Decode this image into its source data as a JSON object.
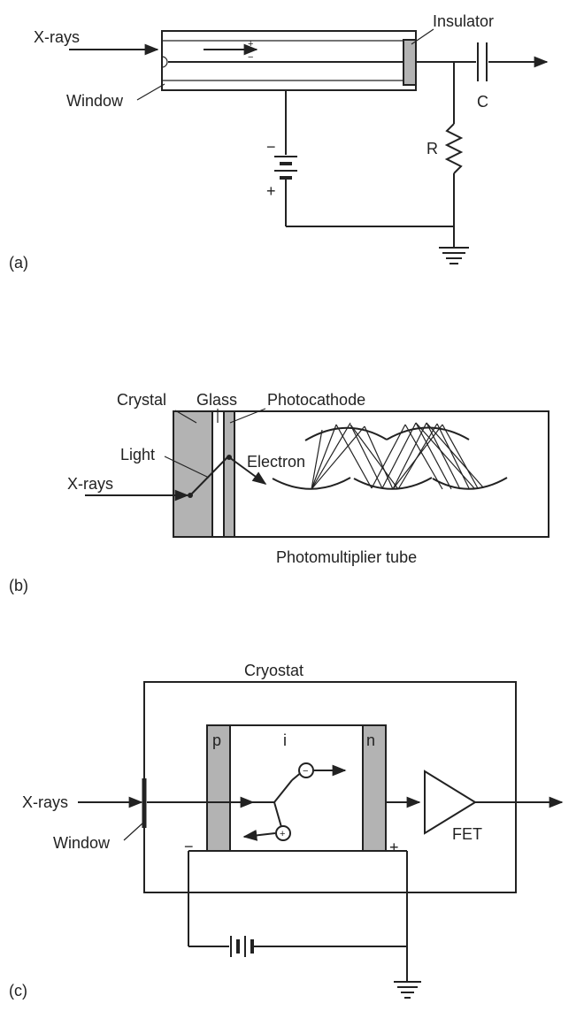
{
  "panel_a": {
    "tag": "(a)",
    "xrays": "X-rays",
    "window": "Window",
    "insulator": "Insulator",
    "capacitor": "C",
    "resistor": "R",
    "plus_small": "+",
    "minus_small": "−",
    "battery_minus": "−",
    "battery_plus": "+"
  },
  "panel_b": {
    "tag": "(b)",
    "crystal": "Crystal",
    "glass": "Glass",
    "photocathode": "Photocathode",
    "light": "Light",
    "xrays": "X-rays",
    "electron": "Electron",
    "tube": "Photomultiplier tube"
  },
  "panel_c": {
    "tag": "(c)",
    "cryostat": "Cryostat",
    "xrays": "X-rays",
    "window": "Window",
    "p": "p",
    "i": "i",
    "n": "n",
    "fet": "FET",
    "minus": "−",
    "plus": "+",
    "electron_sign": "−",
    "hole_sign": "+"
  }
}
